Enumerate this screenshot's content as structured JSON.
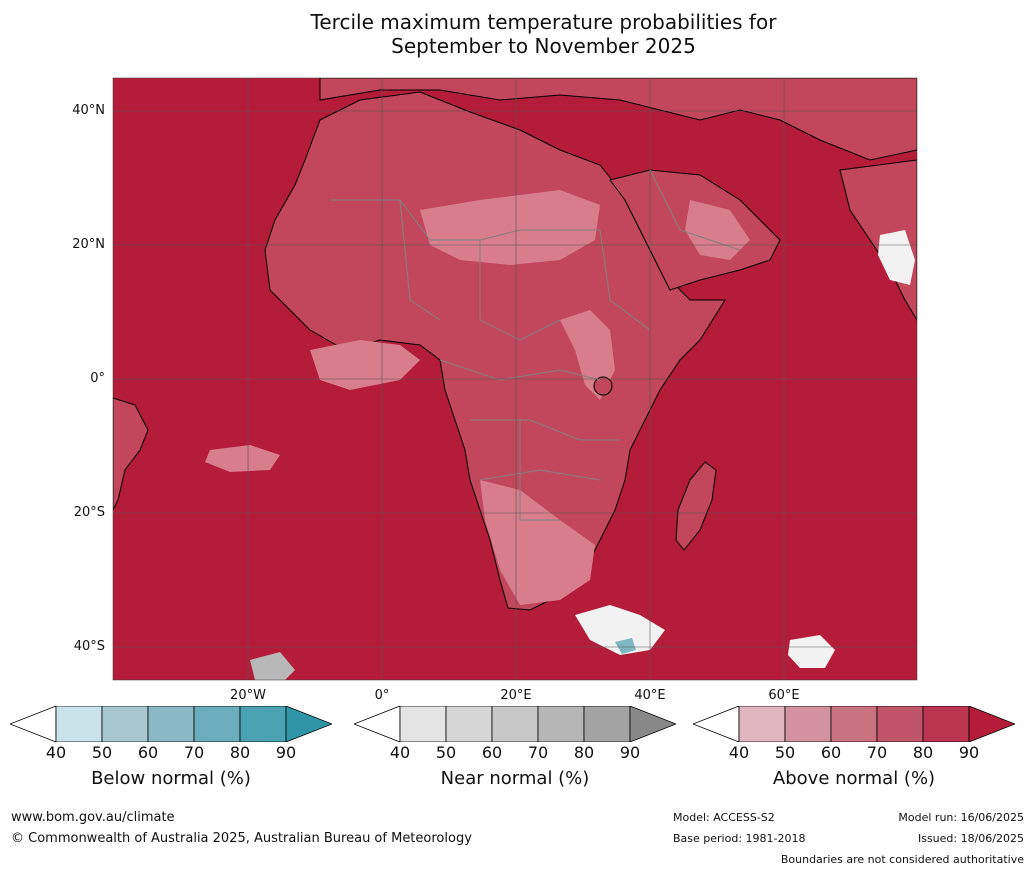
{
  "title": {
    "line1": "Tercile maximum temperature probabilities for",
    "line2": "September to November 2025"
  },
  "map": {
    "latitude_labels": [
      "40°N",
      "20°N",
      "0°",
      "20°S",
      "40°S"
    ],
    "longitude_labels": [
      "20°W",
      "0°",
      "20°E",
      "40°E",
      "60°E"
    ],
    "colors": {
      "ocean_dominant": "#b41c3a",
      "land_lighter": "#c2475d",
      "pale_pink": "#d87d8c",
      "coast": "#000000",
      "borders": "#808080",
      "gridlines": "#555555"
    }
  },
  "colorbars": [
    {
      "name": "below-normal",
      "title": "Below normal (%)",
      "ticks": [
        "40",
        "50",
        "60",
        "70",
        "80",
        "90"
      ],
      "under_color": "#ffffff",
      "colors": [
        "#cae3ea",
        "#a8c8cf",
        "#8ab8c4",
        "#6cadbd",
        "#4aa2b2"
      ],
      "over_color": "#2f96a8"
    },
    {
      "name": "near-normal",
      "title": "Near normal (%)",
      "ticks": [
        "40",
        "50",
        "60",
        "70",
        "80",
        "90"
      ],
      "under_color": "#ffffff",
      "colors": [
        "#e4e4e4",
        "#d6d6d6",
        "#c8c8c8",
        "#b6b6b6",
        "#a3a3a3"
      ],
      "over_color": "#888888"
    },
    {
      "name": "above-normal",
      "title": "Above normal (%)",
      "ticks": [
        "40",
        "50",
        "60",
        "70",
        "80",
        "90"
      ],
      "under_color": "#ffffff",
      "colors": [
        "#e0b5bf",
        "#d3929f",
        "#c97280",
        "#c05468",
        "#b93550"
      ],
      "over_color": "#b41c3a"
    }
  ],
  "footer": {
    "website": "www.bom.gov.au/climate",
    "copyright": "© Commonwealth of Australia 2025, Australian Bureau of Meteorology",
    "model": "Model: ACCESS-S2",
    "base_period": "Base period: 1981-2018",
    "model_run": "Model run: 16/06/2025",
    "issued": "Issued: 18/06/2025",
    "disclaimer": "Boundaries are not considered authoritative"
  }
}
